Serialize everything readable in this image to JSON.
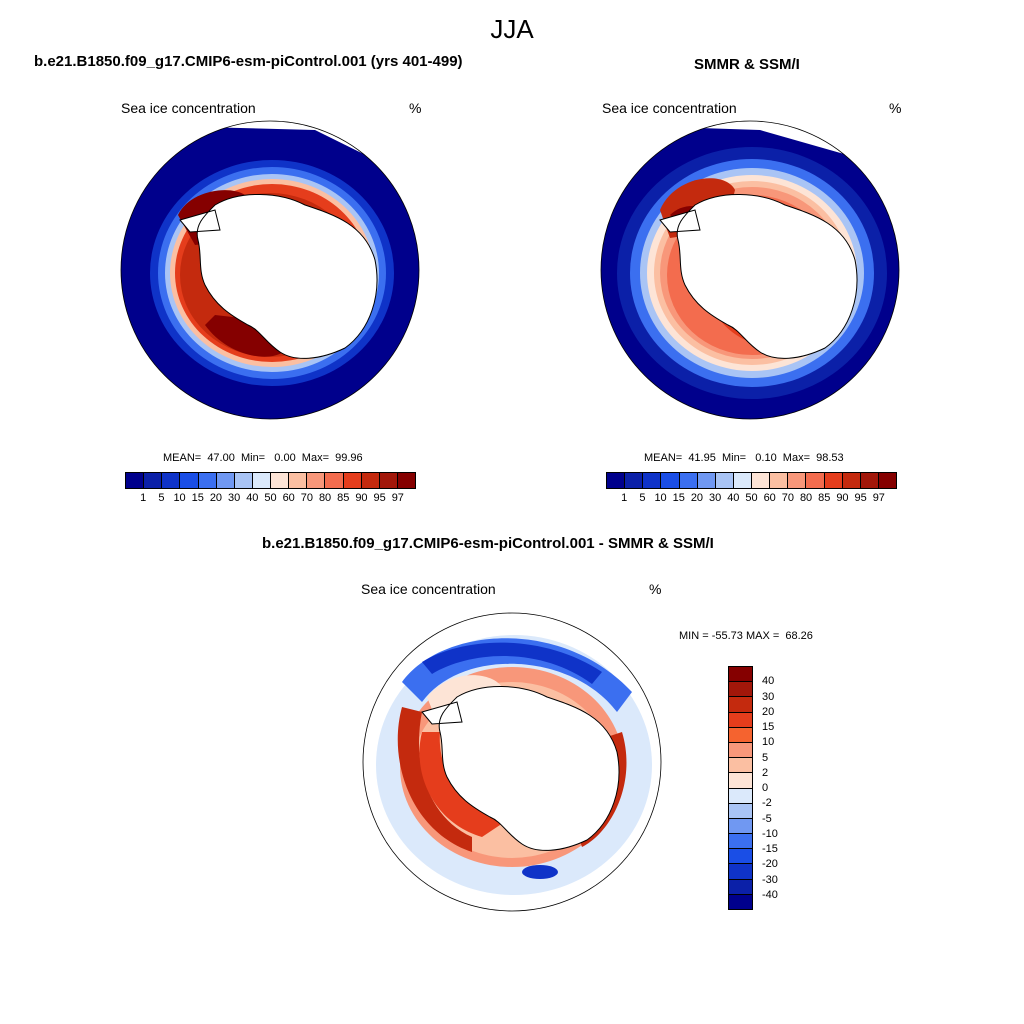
{
  "figure_title": "JJA",
  "panels": [
    {
      "id": "model",
      "title": "b.e21.B1850.f09_g17.CMIP6-esm-piControl.001 (yrs 401-499)",
      "left_label": "Sea ice concentration",
      "right_label": "%",
      "stats": "MEAN=  47.00  Min=   0.00  Max=  99.96",
      "colorbar_ticks": [
        "1",
        "5",
        "10",
        "15",
        "20",
        "30",
        "40",
        "50",
        "60",
        "70",
        "80",
        "85",
        "90",
        "95",
        "97"
      ]
    },
    {
      "id": "obs",
      "title": "SMMR & SSM/I",
      "left_label": "Sea ice concentration",
      "right_label": "%",
      "stats": "MEAN=  41.95  Min=   0.10  Max=  98.53",
      "colorbar_ticks": [
        "1",
        "5",
        "10",
        "15",
        "20",
        "30",
        "40",
        "50",
        "60",
        "70",
        "80",
        "85",
        "90",
        "95",
        "97"
      ]
    },
    {
      "id": "diff",
      "title": "b.e21.B1850.f09_g17.CMIP6-esm-piControl.001 - SMMR & SSM/I",
      "left_label": "Sea ice concentration",
      "right_label": "%",
      "stats": "MIN = -55.73 MAX =  68.26",
      "colorbar_ticks": [
        "40",
        "30",
        "20",
        "15",
        "10",
        "5",
        "2",
        "0",
        "-2",
        "-5",
        "-10",
        "-15",
        "-20",
        "-30",
        "-40"
      ]
    }
  ],
  "colors": {
    "conc_scale": [
      "#00008c",
      "#0b20a8",
      "#0f33c8",
      "#1a4ee6",
      "#3b6ff0",
      "#7098f2",
      "#a9c4f5",
      "#dbe9fb",
      "#fde4d6",
      "#fbbfa2",
      "#f8977a",
      "#f36c4e",
      "#e53d1c",
      "#c42a0e",
      "#a2170a",
      "#850000"
    ],
    "diff_scale": [
      "#850000",
      "#a2170a",
      "#c42a0e",
      "#e53d1c",
      "#f5632f",
      "#f8977a",
      "#fbbfa2",
      "#fde4d6",
      "#dbe9fb",
      "#a9c4f5",
      "#7098f2",
      "#3b6ff0",
      "#1a4ee6",
      "#0f33c8",
      "#0b20a8",
      "#00008c"
    ]
  }
}
